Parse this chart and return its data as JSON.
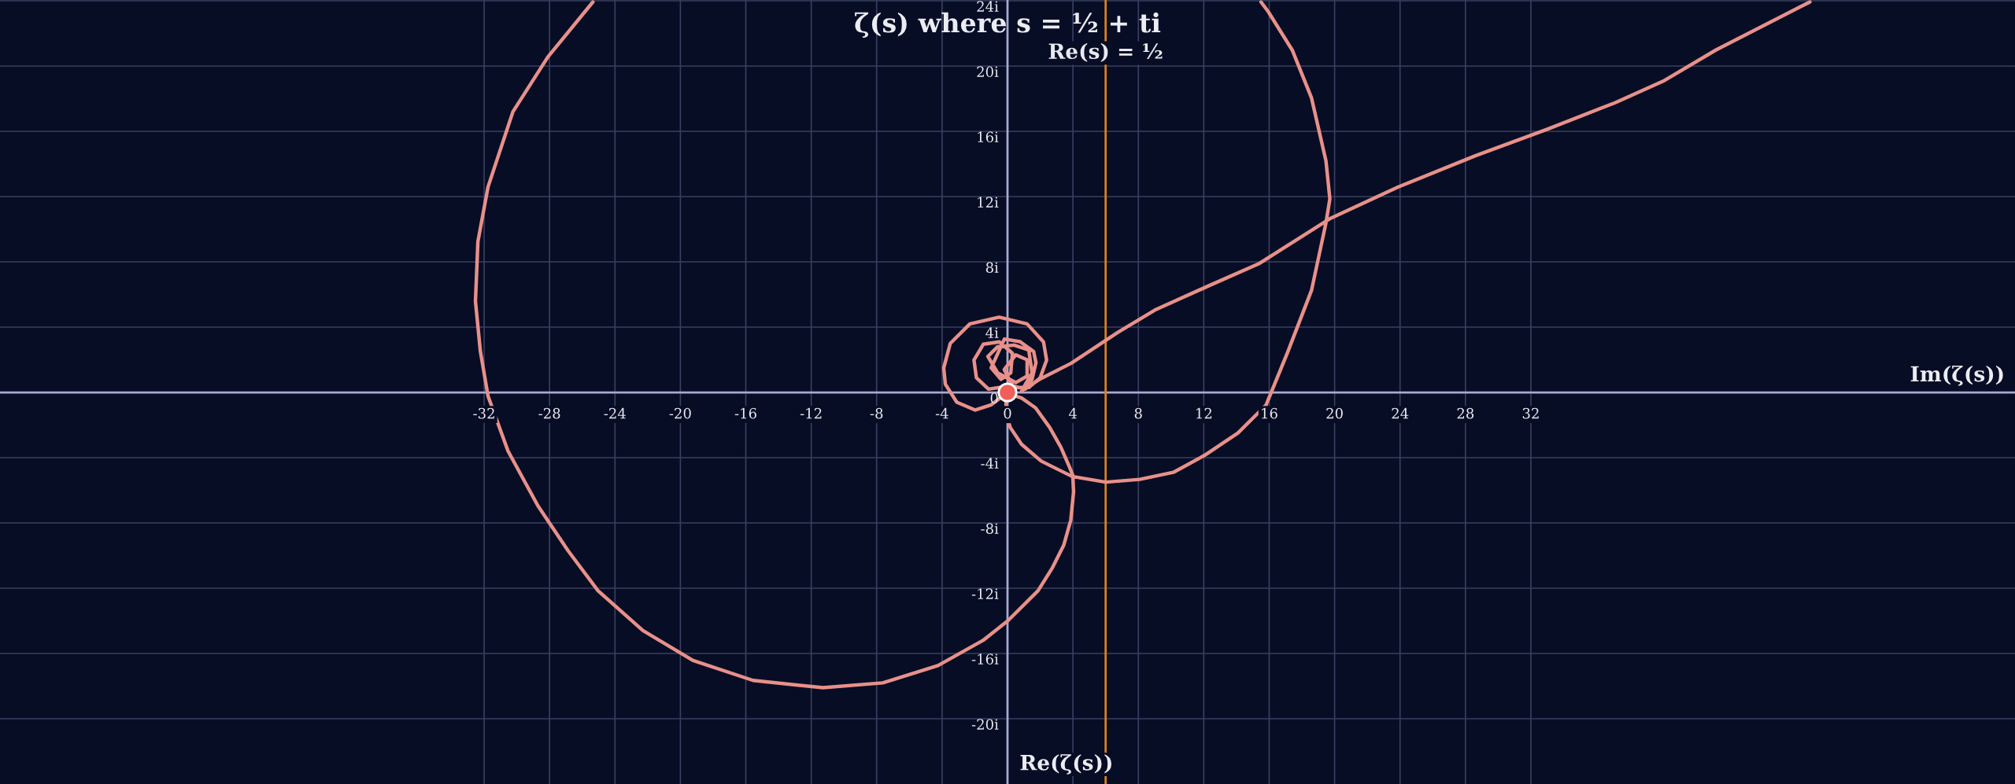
{
  "chart_data": {
    "type": "line",
    "title": "ζ(s) where s = ½ + ti",
    "xlabel": "Im(ζ(s))",
    "ylabel": "Re(ζ(s))",
    "xlim": [
      -61.6,
      61.6
    ],
    "ylim": [
      -24,
      24.05
    ],
    "xticks": [
      -32,
      -28,
      -24,
      -20,
      -16,
      -12,
      -8,
      -4,
      0,
      4,
      8,
      12,
      16,
      20,
      24,
      28,
      32
    ],
    "yticks": [
      {
        "value": -20,
        "label": "-20i"
      },
      {
        "value": -16,
        "label": "-16i"
      },
      {
        "value": -12,
        "label": "-12i"
      },
      {
        "value": -8,
        "label": "-8i"
      },
      {
        "value": -4,
        "label": "-4i"
      },
      {
        "value": 0,
        "label": "0"
      },
      {
        "value": 4,
        "label": "4i"
      },
      {
        "value": 8,
        "label": "8i"
      },
      {
        "value": 12,
        "label": "12i"
      },
      {
        "value": 16,
        "label": "16i"
      },
      {
        "value": 20,
        "label": "20i"
      },
      {
        "value": 24,
        "label": "24i"
      }
    ],
    "grid": true,
    "marker": "none",
    "line_style": "solid",
    "ref_lines": [
      {
        "axis": "x",
        "value": 6,
        "label": "Re(s) = ½",
        "color": "#d98020"
      }
    ],
    "series": [
      {
        "color": "#e8908a",
        "x": [
          -25.35,
          -28.1,
          -30.24,
          -31.76,
          -32.38,
          -32.53,
          -32.23,
          -31.76,
          -30.54,
          -28.71,
          -26.87,
          -25.04,
          -22.29,
          -19.23,
          -15.56,
          -11.28,
          -7.62,
          -4.25,
          -1.5,
          0.03,
          1.87,
          2.75,
          3.44,
          3.87,
          4.04,
          3.99,
          3.78,
          3.26,
          2.58,
          1.72,
          0.86,
          0.34,
          0,
          -0.35,
          -1.0,
          -1.97,
          -3.1,
          -3.8,
          -3.9,
          -3.5,
          -2.3,
          -0.52,
          1.2,
          2.2,
          2.39,
          2.0,
          1.3,
          -0.5,
          -1.16,
          -1.9,
          -2.05,
          -1.48,
          -0.5,
          0.3,
          0.2,
          -0.4,
          -1.0,
          -0.19,
          0.77,
          1.6,
          1.74,
          1.5,
          1.1,
          0.3,
          -0.2,
          0.5,
          1.2,
          1.2,
          0.5,
          -0.6,
          -1.2,
          -0.6,
          0.4,
          1.3,
          1.5,
          0.86,
          2.06,
          3.9,
          6.73,
          9.09,
          12.23,
          15.35,
          19.77,
          23.89,
          28.6,
          33.0,
          37.14,
          40.08,
          43.32,
          49.06,
          null,
          15.5,
          15.94,
          17.41,
          18.59,
          19.47,
          19.71,
          19.47,
          18.59,
          17.12,
          15.81,
          14.09,
          12.03,
          10.14,
          8.08,
          6.01,
          3.95,
          2.06,
          0.86,
          0.17,
          -0.09,
          -0.09,
          0
        ],
        "values": [
          23.93,
          20.56,
          17.2,
          12.6,
          9.25,
          5.58,
          2.52,
          -0.23,
          -3.59,
          -6.95,
          -9.7,
          -12.15,
          -14.6,
          -16.43,
          -17.65,
          -18.1,
          -17.8,
          -16.74,
          -15.2,
          -13.99,
          -12.15,
          -10.74,
          -9.36,
          -7.82,
          -6.1,
          -5.07,
          -4.55,
          -3.35,
          -2.15,
          -0.95,
          -0.34,
          -0.17,
          0,
          -0.27,
          -0.76,
          -1.08,
          -0.6,
          0.5,
          1.5,
          3.0,
          4.2,
          4.61,
          4.2,
          3.1,
          1.98,
          0.9,
          0.3,
          0.3,
          0.2,
          0.9,
          1.98,
          2.95,
          3.1,
          2.4,
          1.2,
          0.8,
          1.5,
          3.27,
          3.11,
          2.5,
          1.82,
          0.8,
          0.2,
          0.4,
          1.4,
          2.3,
          2.0,
          1.0,
          0.6,
          1.2,
          2.2,
          2.8,
          2.9,
          2.6,
          1.2,
          0.09,
          0.86,
          1.79,
          3.67,
          5.09,
          6.5,
          7.88,
          10.68,
          12.59,
          14.5,
          16.13,
          17.75,
          19.07,
          20.99,
          23.93,
          null,
          23.93,
          23.34,
          20.98,
          18.04,
          14.2,
          11.86,
          10.38,
          6.26,
          2.44,
          -0.77,
          -2.49,
          -3.87,
          -4.9,
          -5.33,
          -5.5,
          -5.15,
          -4.21,
          -3.18,
          -2.15,
          -1.29,
          -0.26,
          0
        ]
      },
      {
        "type": "scatter",
        "color": "#f0605a",
        "marker": "circle",
        "x": [
          0
        ],
        "values": [
          0
        ]
      }
    ]
  }
}
